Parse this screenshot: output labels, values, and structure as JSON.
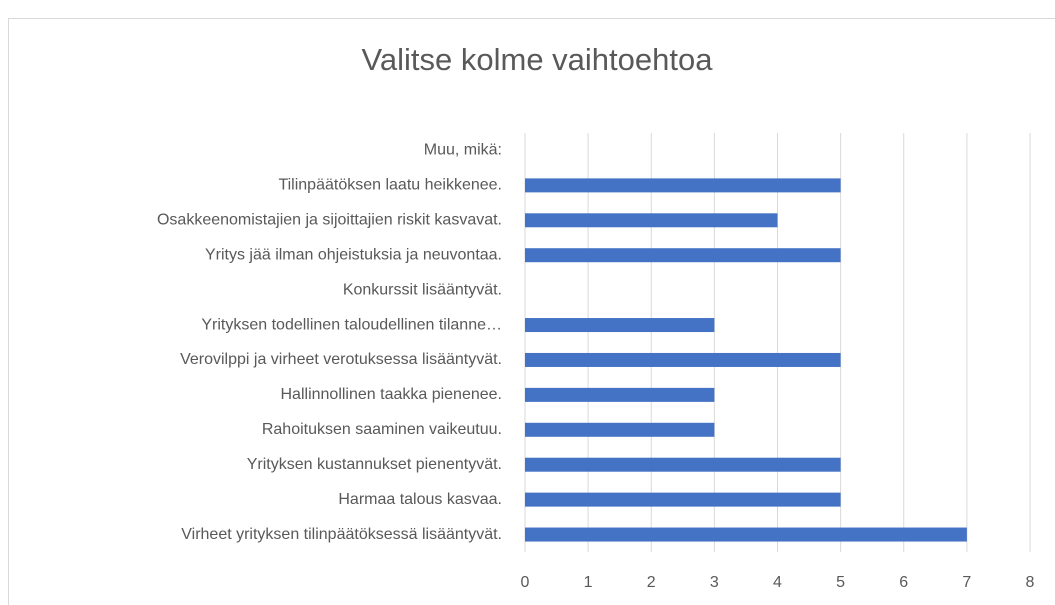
{
  "chart_data": {
    "type": "hbar",
    "title": "Valitse kolme vaihtoehtoa",
    "categories": [
      "Muu, mikä:",
      "Tilinpäätöksen laatu heikkenee.",
      "Osakkeenomistajien ja sijoittajien riskit kasvavat.",
      "Yritys jää ilman ohjeistuksia ja neuvontaa.",
      "Konkurssit lisääntyvät.",
      "Yrityksen todellinen taloudellinen tilanne…",
      "Verovilppi ja virheet verotuksessa lisääntyvät.",
      "Hallinnollinen taakka pienenee.",
      "Rahoituksen saaminen vaikeutuu.",
      "Yrityksen kustannukset pienentyvät.",
      "Harmaa talous kasvaa.",
      "Virheet yrityksen tilinpäätöksessä lisääntyvät."
    ],
    "values": [
      0,
      5,
      4,
      5,
      0,
      3,
      5,
      3,
      3,
      5,
      5,
      7
    ],
    "color": "#4472c4",
    "xlim": [
      0,
      8
    ],
    "xticks": [
      0,
      1,
      2,
      3,
      4,
      5,
      6,
      7,
      8
    ],
    "grid": true
  }
}
